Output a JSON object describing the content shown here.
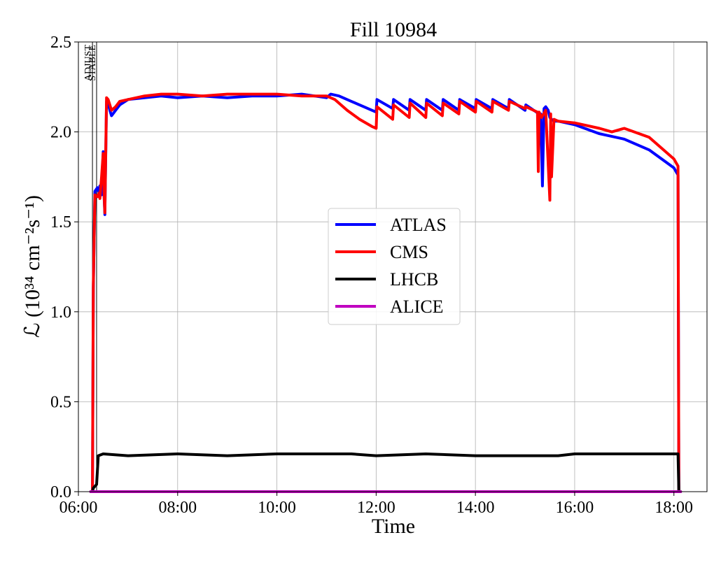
{
  "chart_data": {
    "type": "line",
    "title": "Fill 10984",
    "xlabel": "Time",
    "ylabel": "ℒ (10³⁴ cm⁻²s⁻¹)",
    "xlim": [
      "06:00",
      "18:40"
    ],
    "ylim": [
      0,
      2.5
    ],
    "x_ticks": [
      "06:00",
      "08:00",
      "10:00",
      "12:00",
      "14:00",
      "16:00",
      "18:00"
    ],
    "y_ticks": [
      "0.0",
      "0.5",
      "1.0",
      "1.5",
      "2.0",
      "2.5"
    ],
    "grid": true,
    "legend_placement": "center",
    "markers": [
      {
        "label": "ADJUST",
        "x": "06:17"
      },
      {
        "label": "STABLE",
        "x": "06:22"
      }
    ],
    "series": [
      {
        "name": "ATLAS",
        "color": "#0000ff",
        "x": [
          "06:15",
          "06:17",
          "06:18",
          "06:20",
          "06:23",
          "06:25",
          "06:26",
          "06:28",
          "06:30",
          "06:31",
          "06:32",
          "06:34",
          "06:36",
          "06:38",
          "06:40",
          "06:45",
          "06:50",
          "07:00",
          "07:20",
          "07:40",
          "08:00",
          "08:30",
          "09:00",
          "09:30",
          "10:00",
          "10:30",
          "11:00",
          "11:05",
          "11:15",
          "11:30",
          "11:45",
          "12:00",
          "12:01",
          "12:20",
          "12:21",
          "12:40",
          "12:41",
          "13:00",
          "13:01",
          "13:20",
          "13:21",
          "13:40",
          "13:41",
          "14:00",
          "14:01",
          "14:20",
          "14:21",
          "14:40",
          "14:41",
          "15:00",
          "15:01",
          "15:17",
          "15:19",
          "15:21",
          "15:23",
          "15:25",
          "15:28",
          "15:30",
          "15:32",
          "15:35",
          "15:40",
          "16:00",
          "16:30",
          "17:00",
          "17:30",
          "18:00",
          "18:05",
          "18:06",
          "18:08"
        ],
        "y": [
          0.0,
          0.0,
          1.13,
          1.67,
          1.69,
          1.66,
          1.7,
          1.65,
          1.89,
          1.65,
          1.54,
          2.17,
          2.16,
          2.12,
          2.09,
          2.12,
          2.15,
          2.18,
          2.19,
          2.2,
          2.19,
          2.2,
          2.19,
          2.2,
          2.2,
          2.21,
          2.19,
          2.21,
          2.2,
          2.17,
          2.14,
          2.11,
          2.18,
          2.13,
          2.18,
          2.12,
          2.18,
          2.12,
          2.18,
          2.12,
          2.18,
          2.12,
          2.18,
          2.13,
          2.18,
          2.13,
          2.18,
          2.13,
          2.18,
          2.12,
          2.15,
          2.1,
          2.1,
          1.7,
          2.13,
          2.14,
          2.12,
          2.08,
          2.07,
          2.06,
          2.06,
          2.04,
          1.99,
          1.96,
          1.9,
          1.8,
          1.76,
          0.0,
          0.0
        ]
      },
      {
        "name": "CMS",
        "color": "#ff0000",
        "x": [
          "06:15",
          "06:17",
          "06:18",
          "06:20",
          "06:23",
          "06:25",
          "06:26",
          "06:28",
          "06:30",
          "06:31",
          "06:32",
          "06:34",
          "06:36",
          "06:38",
          "06:40",
          "06:45",
          "06:50",
          "07:00",
          "07:20",
          "07:40",
          "08:00",
          "08:30",
          "09:00",
          "09:30",
          "10:00",
          "10:30",
          "11:00",
          "11:10",
          "11:25",
          "11:40",
          "11:55",
          "12:00",
          "12:01",
          "12:20",
          "12:21",
          "12:40",
          "12:41",
          "13:00",
          "13:01",
          "13:20",
          "13:21",
          "13:40",
          "13:41",
          "14:00",
          "14:01",
          "14:20",
          "14:21",
          "14:40",
          "14:41",
          "15:00",
          "15:01",
          "15:15",
          "15:16",
          "15:17",
          "15:20",
          "15:25",
          "15:30",
          "15:31",
          "15:32",
          "15:35",
          "15:40",
          "16:00",
          "16:30",
          "16:45",
          "17:00",
          "17:30",
          "18:00",
          "18:05",
          "18:06",
          "18:08"
        ],
        "y": [
          0.0,
          0.0,
          1.15,
          1.65,
          1.64,
          1.66,
          1.63,
          1.75,
          1.88,
          1.66,
          1.55,
          2.19,
          2.18,
          2.15,
          2.12,
          2.14,
          2.17,
          2.18,
          2.2,
          2.21,
          2.21,
          2.2,
          2.21,
          2.21,
          2.21,
          2.2,
          2.2,
          2.18,
          2.12,
          2.07,
          2.03,
          2.02,
          2.14,
          2.07,
          2.15,
          2.08,
          2.16,
          2.08,
          2.16,
          2.09,
          2.16,
          2.1,
          2.17,
          2.11,
          2.17,
          2.11,
          2.17,
          2.12,
          2.17,
          2.13,
          2.14,
          2.11,
          1.78,
          2.11,
          2.08,
          2.12,
          1.62,
          2.1,
          1.75,
          2.07,
          2.06,
          2.05,
          2.02,
          2.0,
          2.02,
          1.97,
          1.85,
          1.81,
          0.0,
          0.0
        ]
      },
      {
        "name": "LHCB",
        "color": "#000000",
        "x": [
          "06:15",
          "06:17",
          "06:18",
          "06:22",
          "06:24",
          "06:30",
          "07:00",
          "08:00",
          "09:00",
          "10:00",
          "11:00",
          "11:30",
          "12:00",
          "13:00",
          "14:00",
          "15:00",
          "15:40",
          "16:00",
          "17:00",
          "18:00",
          "18:05",
          "18:06",
          "18:08"
        ],
        "y": [
          0.0,
          0.0,
          0.02,
          0.04,
          0.2,
          0.21,
          0.2,
          0.21,
          0.2,
          0.21,
          0.21,
          0.21,
          0.2,
          0.21,
          0.2,
          0.2,
          0.2,
          0.21,
          0.21,
          0.21,
          0.21,
          0.0,
          0.0
        ]
      },
      {
        "name": "ALICE",
        "color": "#c000c0",
        "x": [
          "06:15",
          "18:08"
        ],
        "y": [
          0.0,
          0.0
        ]
      }
    ]
  }
}
